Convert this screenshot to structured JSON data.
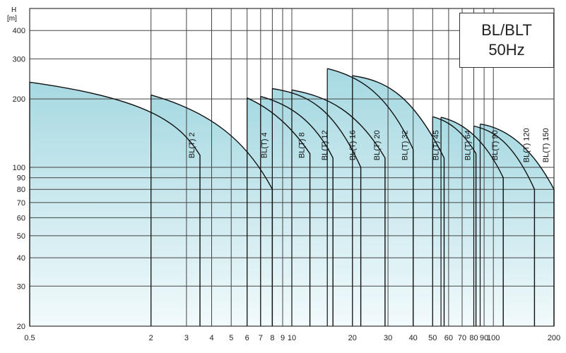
{
  "chart_data": {
    "type": "area",
    "title": "BL/BLT",
    "subtitle": "50Hz",
    "ylabel_top": "H",
    "ylabel_unit": "[m]",
    "x_scale": "log",
    "y_scale": "log",
    "xlim": [
      0.5,
      200
    ],
    "ylim": [
      20,
      500
    ],
    "x_ticks": [
      0.5,
      2,
      3,
      4,
      5,
      6,
      7,
      8,
      9,
      10,
      20,
      30,
      40,
      50,
      60,
      70,
      80,
      90,
      100,
      200
    ],
    "x_tick_labels": [
      "0.5",
      "2",
      "3",
      "4",
      "5",
      "6",
      "7",
      "8",
      "9",
      "10",
      "20",
      "30",
      "40",
      "50",
      "60",
      "70",
      "80",
      "90",
      "100",
      "200"
    ],
    "y_ticks": [
      20,
      30,
      40,
      50,
      60,
      70,
      80,
      90,
      100,
      200,
      300,
      400
    ],
    "y_tick_labels": [
      "20",
      "30",
      "40",
      "50",
      "60",
      "70",
      "80",
      "90",
      "100",
      "200",
      "300",
      "400"
    ],
    "grid": true,
    "series": [
      {
        "name": "BL(T) 2",
        "x": [
          0.5,
          2,
          2.8,
          3.5
        ],
        "y": [
          237,
          200,
          155,
          113
        ]
      },
      {
        "name": "BL(T) 4",
        "x": [
          2,
          4,
          6,
          8
        ],
        "y": [
          208,
          175,
          130,
          80
        ]
      },
      {
        "name": "BL(T) 8",
        "x": [
          6,
          8,
          10,
          12.3
        ],
        "y": [
          202,
          180,
          150,
          115
        ]
      },
      {
        "name": "BL(T) 12",
        "x": [
          7,
          10,
          13,
          16
        ],
        "y": [
          205,
          188,
          158,
          110
        ]
      },
      {
        "name": "BL(T) 16",
        "x": [
          8,
          12,
          16,
          22
        ],
        "y": [
          222,
          210,
          185,
          100
        ]
      },
      {
        "name": "BL(T) 20",
        "x": [
          10,
          15,
          21,
          29
        ],
        "y": [
          219,
          205,
          178,
          110
        ]
      },
      {
        "name": "BL(T) 32",
        "x": [
          15,
          22,
          30,
          40
        ],
        "y": [
          272,
          250,
          210,
          120
        ]
      },
      {
        "name": "BL(T) 45",
        "x": [
          20,
          30,
          40,
          57
        ],
        "y": [
          253,
          240,
          205,
          110
        ]
      },
      {
        "name": "BL(T) 64",
        "x": [
          50,
          60,
          70,
          82
        ],
        "y": [
          167,
          160,
          145,
          115
        ]
      },
      {
        "name": "BL(T) 90",
        "x": [
          55,
          70,
          90,
          112
        ],
        "y": [
          166,
          158,
          135,
          90
        ]
      },
      {
        "name": "BL(T) 120",
        "x": [
          80,
          100,
          125,
          160
        ],
        "y": [
          152,
          145,
          130,
          80
        ]
      },
      {
        "name": "BL(T) 150",
        "x": [
          86,
          110,
          150,
          200
        ],
        "y": [
          155,
          150,
          130,
          80
        ]
      }
    ]
  }
}
